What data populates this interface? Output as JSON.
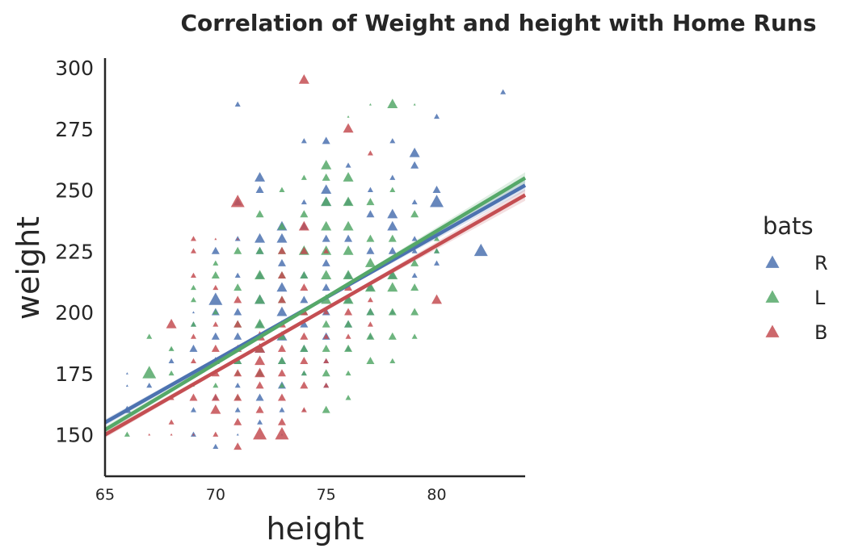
{
  "chart_data": {
    "type": "scatter",
    "title": "Correlation of Weight and height with Home Runs",
    "xlabel": "height",
    "ylabel": "weight",
    "xlim": [
      65,
      84
    ],
    "ylim": [
      133,
      304
    ],
    "xticks": [
      65,
      70,
      75,
      80
    ],
    "yticks": [
      150,
      175,
      200,
      225,
      250,
      275,
      300
    ],
    "grid": false,
    "marker": "triangle",
    "legend": {
      "title": "bats",
      "placement": "right"
    },
    "series": [
      {
        "name": "R",
        "color": "#4c72b0",
        "regression": {
          "x": [
            65,
            84
          ],
          "y": [
            155,
            252
          ]
        },
        "points": [
          [
            66,
            175,
            1
          ],
          [
            66,
            170,
            1
          ],
          [
            66,
            160,
            3
          ],
          [
            67,
            170,
            2
          ],
          [
            68,
            185,
            1
          ],
          [
            68,
            180,
            2
          ],
          [
            69,
            150,
            2
          ],
          [
            69,
            160,
            2
          ],
          [
            69,
            185,
            3
          ],
          [
            69,
            195,
            2
          ],
          [
            69,
            200,
            1
          ],
          [
            70,
            205,
            5
          ],
          [
            70,
            200,
            3
          ],
          [
            70,
            225,
            3
          ],
          [
            70,
            145,
            2
          ],
          [
            70,
            180,
            3
          ],
          [
            70,
            190,
            3
          ],
          [
            70,
            165,
            2
          ],
          [
            71,
            285,
            2
          ],
          [
            71,
            245,
            3
          ],
          [
            71,
            230,
            2
          ],
          [
            71,
            215,
            2
          ],
          [
            71,
            200,
            3
          ],
          [
            71,
            190,
            3
          ],
          [
            71,
            180,
            3
          ],
          [
            71,
            170,
            2
          ],
          [
            71,
            160,
            2
          ],
          [
            71,
            150,
            1
          ],
          [
            72,
            255,
            4
          ],
          [
            72,
            250,
            3
          ],
          [
            72,
            230,
            4
          ],
          [
            72,
            225,
            3
          ],
          [
            72,
            215,
            3
          ],
          [
            72,
            205,
            4
          ],
          [
            72,
            195,
            3
          ],
          [
            72,
            185,
            4
          ],
          [
            72,
            175,
            3
          ],
          [
            72,
            165,
            3
          ],
          [
            72,
            155,
            2
          ],
          [
            73,
            235,
            4
          ],
          [
            73,
            230,
            4
          ],
          [
            73,
            220,
            3
          ],
          [
            73,
            210,
            4
          ],
          [
            73,
            200,
            4
          ],
          [
            73,
            190,
            4
          ],
          [
            73,
            180,
            3
          ],
          [
            73,
            170,
            3
          ],
          [
            73,
            160,
            2
          ],
          [
            73,
            150,
            1
          ],
          [
            74,
            270,
            2
          ],
          [
            74,
            245,
            2
          ],
          [
            74,
            235,
            3
          ],
          [
            74,
            225,
            3
          ],
          [
            74,
            215,
            3
          ],
          [
            74,
            205,
            3
          ],
          [
            74,
            195,
            3
          ],
          [
            74,
            185,
            3
          ],
          [
            74,
            175,
            2
          ],
          [
            74,
            160,
            1
          ],
          [
            75,
            270,
            3
          ],
          [
            75,
            250,
            4
          ],
          [
            75,
            245,
            4
          ],
          [
            75,
            230,
            3
          ],
          [
            75,
            220,
            3
          ],
          [
            75,
            210,
            3
          ],
          [
            75,
            200,
            3
          ],
          [
            75,
            190,
            3
          ],
          [
            75,
            180,
            2
          ],
          [
            75,
            170,
            2
          ],
          [
            76,
            260,
            2
          ],
          [
            76,
            245,
            3
          ],
          [
            76,
            230,
            3
          ],
          [
            76,
            215,
            3
          ],
          [
            76,
            205,
            3
          ],
          [
            76,
            195,
            3
          ],
          [
            76,
            185,
            2
          ],
          [
            77,
            250,
            2
          ],
          [
            77,
            240,
            3
          ],
          [
            77,
            225,
            3
          ],
          [
            77,
            210,
            3
          ],
          [
            77,
            200,
            3
          ],
          [
            77,
            190,
            2
          ],
          [
            78,
            270,
            2
          ],
          [
            78,
            255,
            2
          ],
          [
            78,
            240,
            4
          ],
          [
            78,
            235,
            4
          ],
          [
            78,
            225,
            3
          ],
          [
            78,
            215,
            3
          ],
          [
            78,
            200,
            2
          ],
          [
            79,
            265,
            4
          ],
          [
            79,
            260,
            3
          ],
          [
            79,
            245,
            2
          ],
          [
            79,
            230,
            2
          ],
          [
            79,
            225,
            2
          ],
          [
            79,
            215,
            2
          ],
          [
            80,
            245,
            5
          ],
          [
            80,
            250,
            3
          ],
          [
            80,
            280,
            2
          ],
          [
            80,
            225,
            2
          ],
          [
            80,
            220,
            2
          ],
          [
            82,
            225,
            5
          ],
          [
            83,
            290,
            2
          ]
        ]
      },
      {
        "name": "L",
        "color": "#55a868",
        "regression": {
          "x": [
            65,
            84
          ],
          "y": [
            152,
            255
          ]
        },
        "points": [
          [
            66,
            150,
            2
          ],
          [
            67,
            175,
            5
          ],
          [
            67,
            190,
            2
          ],
          [
            68,
            175,
            2
          ],
          [
            68,
            185,
            2
          ],
          [
            69,
            210,
            2
          ],
          [
            69,
            205,
            2
          ],
          [
            69,
            195,
            2
          ],
          [
            69,
            170,
            1
          ],
          [
            70,
            220,
            2
          ],
          [
            70,
            215,
            3
          ],
          [
            70,
            200,
            2
          ],
          [
            70,
            180,
            2
          ],
          [
            70,
            170,
            2
          ],
          [
            71,
            225,
            3
          ],
          [
            71,
            210,
            3
          ],
          [
            71,
            195,
            3
          ],
          [
            71,
            180,
            3
          ],
          [
            71,
            175,
            2
          ],
          [
            71,
            165,
            2
          ],
          [
            72,
            240,
            3
          ],
          [
            72,
            225,
            3
          ],
          [
            72,
            215,
            4
          ],
          [
            72,
            205,
            4
          ],
          [
            72,
            195,
            4
          ],
          [
            72,
            185,
            3
          ],
          [
            72,
            175,
            3
          ],
          [
            73,
            250,
            2
          ],
          [
            73,
            235,
            3
          ],
          [
            73,
            225,
            3
          ],
          [
            73,
            215,
            3
          ],
          [
            73,
            205,
            3
          ],
          [
            73,
            190,
            3
          ],
          [
            73,
            180,
            3
          ],
          [
            73,
            170,
            2
          ],
          [
            74,
            255,
            2
          ],
          [
            74,
            240,
            3
          ],
          [
            74,
            225,
            4
          ],
          [
            74,
            215,
            3
          ],
          [
            74,
            200,
            3
          ],
          [
            74,
            185,
            3
          ],
          [
            74,
            175,
            2
          ],
          [
            75,
            260,
            4
          ],
          [
            75,
            255,
            3
          ],
          [
            75,
            245,
            4
          ],
          [
            75,
            235,
            4
          ],
          [
            75,
            225,
            4
          ],
          [
            75,
            215,
            4
          ],
          [
            75,
            205,
            4
          ],
          [
            75,
            195,
            3
          ],
          [
            75,
            185,
            3
          ],
          [
            75,
            175,
            3
          ],
          [
            75,
            160,
            3
          ],
          [
            76,
            280,
            1
          ],
          [
            76,
            255,
            4
          ],
          [
            76,
            245,
            4
          ],
          [
            76,
            235,
            4
          ],
          [
            76,
            225,
            4
          ],
          [
            76,
            215,
            4
          ],
          [
            76,
            205,
            4
          ],
          [
            76,
            195,
            3
          ],
          [
            76,
            185,
            3
          ],
          [
            76,
            175,
            2
          ],
          [
            76,
            165,
            2
          ],
          [
            77,
            285,
            1
          ],
          [
            77,
            245,
            3
          ],
          [
            77,
            230,
            3
          ],
          [
            77,
            220,
            4
          ],
          [
            77,
            210,
            4
          ],
          [
            77,
            200,
            3
          ],
          [
            77,
            190,
            3
          ],
          [
            77,
            180,
            3
          ],
          [
            78,
            285,
            4
          ],
          [
            78,
            250,
            2
          ],
          [
            78,
            230,
            3
          ],
          [
            78,
            215,
            4
          ],
          [
            78,
            210,
            4
          ],
          [
            78,
            200,
            3
          ],
          [
            78,
            190,
            3
          ],
          [
            78,
            180,
            2
          ],
          [
            79,
            285,
            1
          ],
          [
            79,
            240,
            3
          ],
          [
            79,
            220,
            3
          ],
          [
            79,
            210,
            3
          ],
          [
            79,
            200,
            3
          ],
          [
            79,
            190,
            2
          ],
          [
            80,
            230,
            2
          ],
          [
            80,
            225,
            2
          ]
        ]
      },
      {
        "name": "B",
        "color": "#c44e52",
        "regression": {
          "x": [
            65,
            84
          ],
          "y": [
            150,
            248
          ]
        },
        "points": [
          [
            67,
            150,
            1
          ],
          [
            68,
            195,
            4
          ],
          [
            68,
            165,
            2
          ],
          [
            68,
            155,
            2
          ],
          [
            68,
            150,
            1
          ],
          [
            69,
            230,
            2
          ],
          [
            69,
            225,
            2
          ],
          [
            69,
            215,
            2
          ],
          [
            69,
            190,
            2
          ],
          [
            69,
            180,
            2
          ],
          [
            69,
            165,
            3
          ],
          [
            69,
            150,
            1
          ],
          [
            70,
            230,
            1
          ],
          [
            70,
            210,
            2
          ],
          [
            70,
            195,
            2
          ],
          [
            70,
            185,
            3
          ],
          [
            70,
            175,
            3
          ],
          [
            70,
            165,
            3
          ],
          [
            70,
            160,
            4
          ],
          [
            70,
            150,
            2
          ],
          [
            71,
            245,
            5
          ],
          [
            71,
            230,
            1
          ],
          [
            71,
            205,
            3
          ],
          [
            71,
            195,
            3
          ],
          [
            71,
            185,
            3
          ],
          [
            71,
            175,
            3
          ],
          [
            71,
            165,
            3
          ],
          [
            71,
            155,
            3
          ],
          [
            71,
            145,
            3
          ],
          [
            72,
            190,
            4
          ],
          [
            72,
            185,
            4
          ],
          [
            72,
            180,
            4
          ],
          [
            72,
            175,
            4
          ],
          [
            72,
            170,
            3
          ],
          [
            72,
            160,
            3
          ],
          [
            72,
            150,
            5
          ],
          [
            73,
            225,
            3
          ],
          [
            73,
            215,
            3
          ],
          [
            73,
            205,
            3
          ],
          [
            73,
            195,
            3
          ],
          [
            73,
            185,
            3
          ],
          [
            73,
            175,
            3
          ],
          [
            73,
            165,
            3
          ],
          [
            73,
            155,
            3
          ],
          [
            73,
            150,
            5
          ],
          [
            74,
            295,
            4
          ],
          [
            74,
            235,
            4
          ],
          [
            74,
            225,
            3
          ],
          [
            74,
            210,
            3
          ],
          [
            74,
            200,
            3
          ],
          [
            74,
            190,
            3
          ],
          [
            74,
            180,
            3
          ],
          [
            74,
            170,
            3
          ],
          [
            74,
            160,
            2
          ],
          [
            75,
            225,
            2
          ],
          [
            75,
            200,
            2
          ],
          [
            75,
            190,
            2
          ],
          [
            75,
            180,
            2
          ],
          [
            75,
            170,
            2
          ],
          [
            76,
            275,
            4
          ],
          [
            76,
            210,
            3
          ],
          [
            76,
            200,
            3
          ],
          [
            76,
            190,
            2
          ],
          [
            77,
            265,
            2
          ],
          [
            77,
            205,
            2
          ],
          [
            77,
            195,
            2
          ],
          [
            80,
            205,
            4
          ]
        ]
      }
    ]
  }
}
